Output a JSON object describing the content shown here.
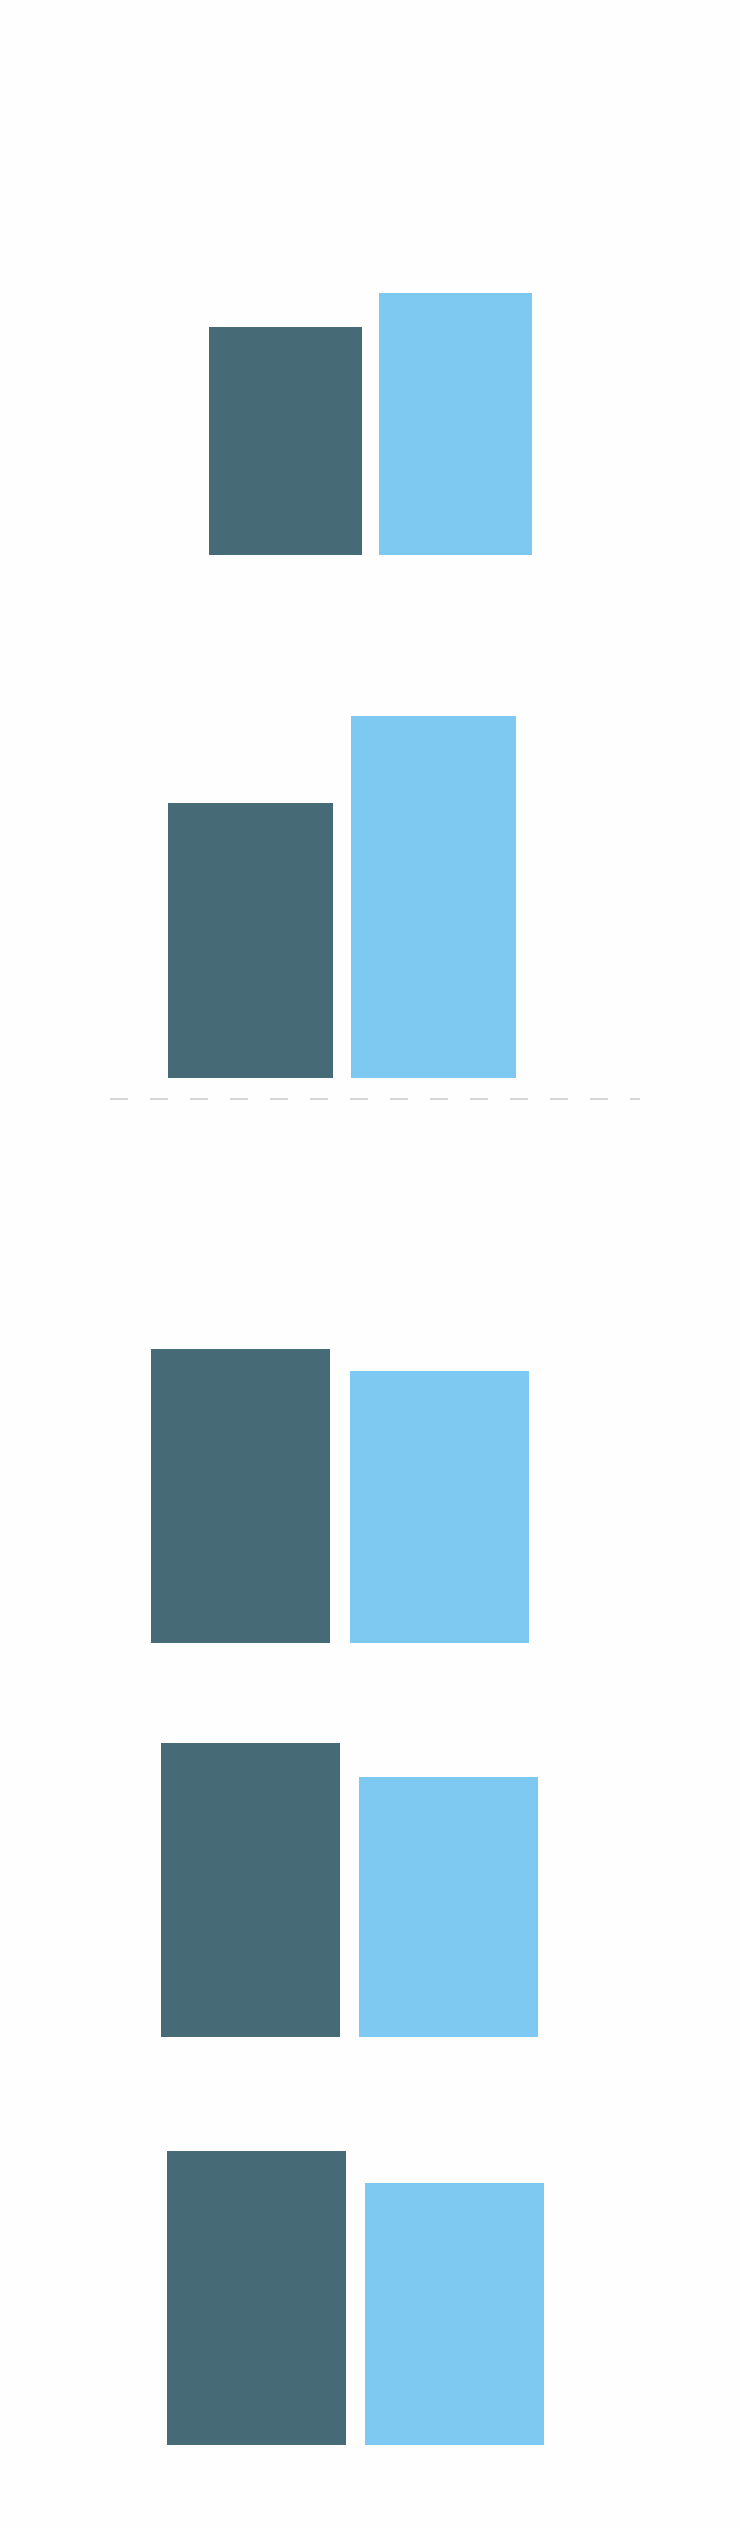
{
  "colors": {
    "background": "#fefefe",
    "series_dark": "#476a77",
    "series_light": "#7ec9f1",
    "divider": "#c8c8c8"
  },
  "chart_data": [
    {
      "type": "bar",
      "orientation": "vertical",
      "grid": false,
      "legend": "none",
      "series": [
        {
          "color_key": "series_dark",
          "values": [
            228
          ]
        },
        {
          "color_key": "series_light",
          "values": [
            262
          ]
        }
      ]
    },
    {
      "type": "bar",
      "orientation": "vertical",
      "grid": false,
      "legend": "none",
      "series": [
        {
          "color_key": "series_dark",
          "values": [
            275
          ]
        },
        {
          "color_key": "series_light",
          "values": [
            362
          ]
        }
      ]
    },
    {
      "type": "bar",
      "orientation": "vertical",
      "grid": false,
      "legend": "none",
      "series": [
        {
          "color_key": "series_dark",
          "values": [
            294
          ]
        },
        {
          "color_key": "series_light",
          "values": [
            272
          ]
        }
      ]
    },
    {
      "type": "bar",
      "orientation": "vertical",
      "grid": false,
      "legend": "none",
      "series": [
        {
          "color_key": "series_dark",
          "values": [
            294
          ]
        },
        {
          "color_key": "series_light",
          "values": [
            260
          ]
        }
      ]
    },
    {
      "type": "bar",
      "orientation": "vertical",
      "grid": false,
      "legend": "none",
      "series": [
        {
          "color_key": "series_dark",
          "values": [
            294
          ]
        },
        {
          "color_key": "series_light",
          "values": [
            262
          ]
        }
      ]
    }
  ]
}
